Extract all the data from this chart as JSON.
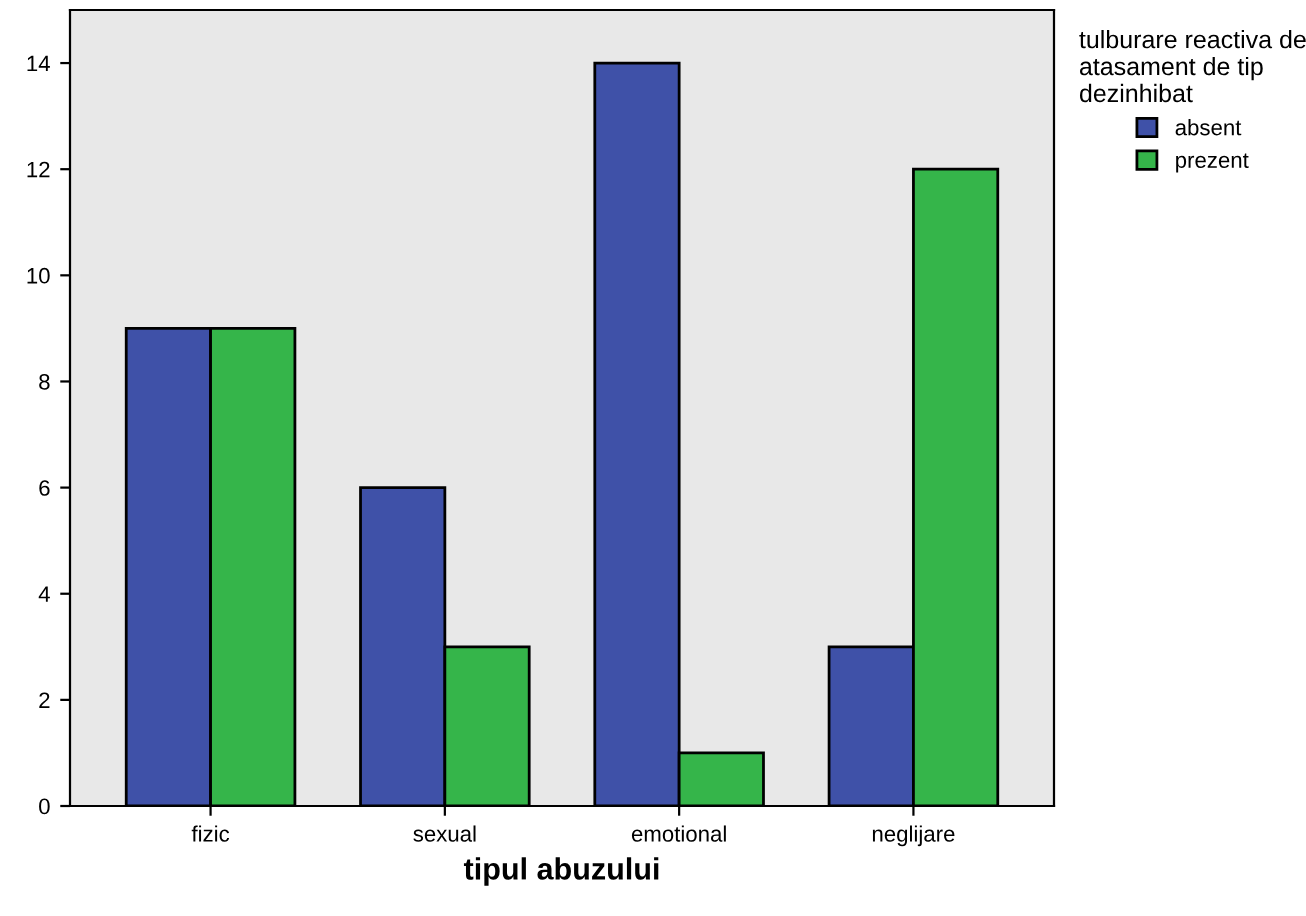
{
  "chart_data": {
    "type": "bar",
    "xlabel": "tipul abuzului",
    "legend_title": "tulburare reactiva de\natasament de tip\ndezinhibat",
    "categories": [
      "fizic",
      "sexual",
      "emotional",
      "neglijare"
    ],
    "series": [
      {
        "name": "absent",
        "color": "#3f51a8",
        "values": [
          9,
          6,
          14,
          3
        ]
      },
      {
        "name": "prezent",
        "color": "#35b54a",
        "values": [
          9,
          3,
          1,
          12
        ]
      }
    ],
    "ylim": [
      0,
      15
    ],
    "yticks": [
      0,
      2,
      4,
      6,
      8,
      10,
      12,
      14
    ],
    "grid": false,
    "legend": "top right"
  }
}
